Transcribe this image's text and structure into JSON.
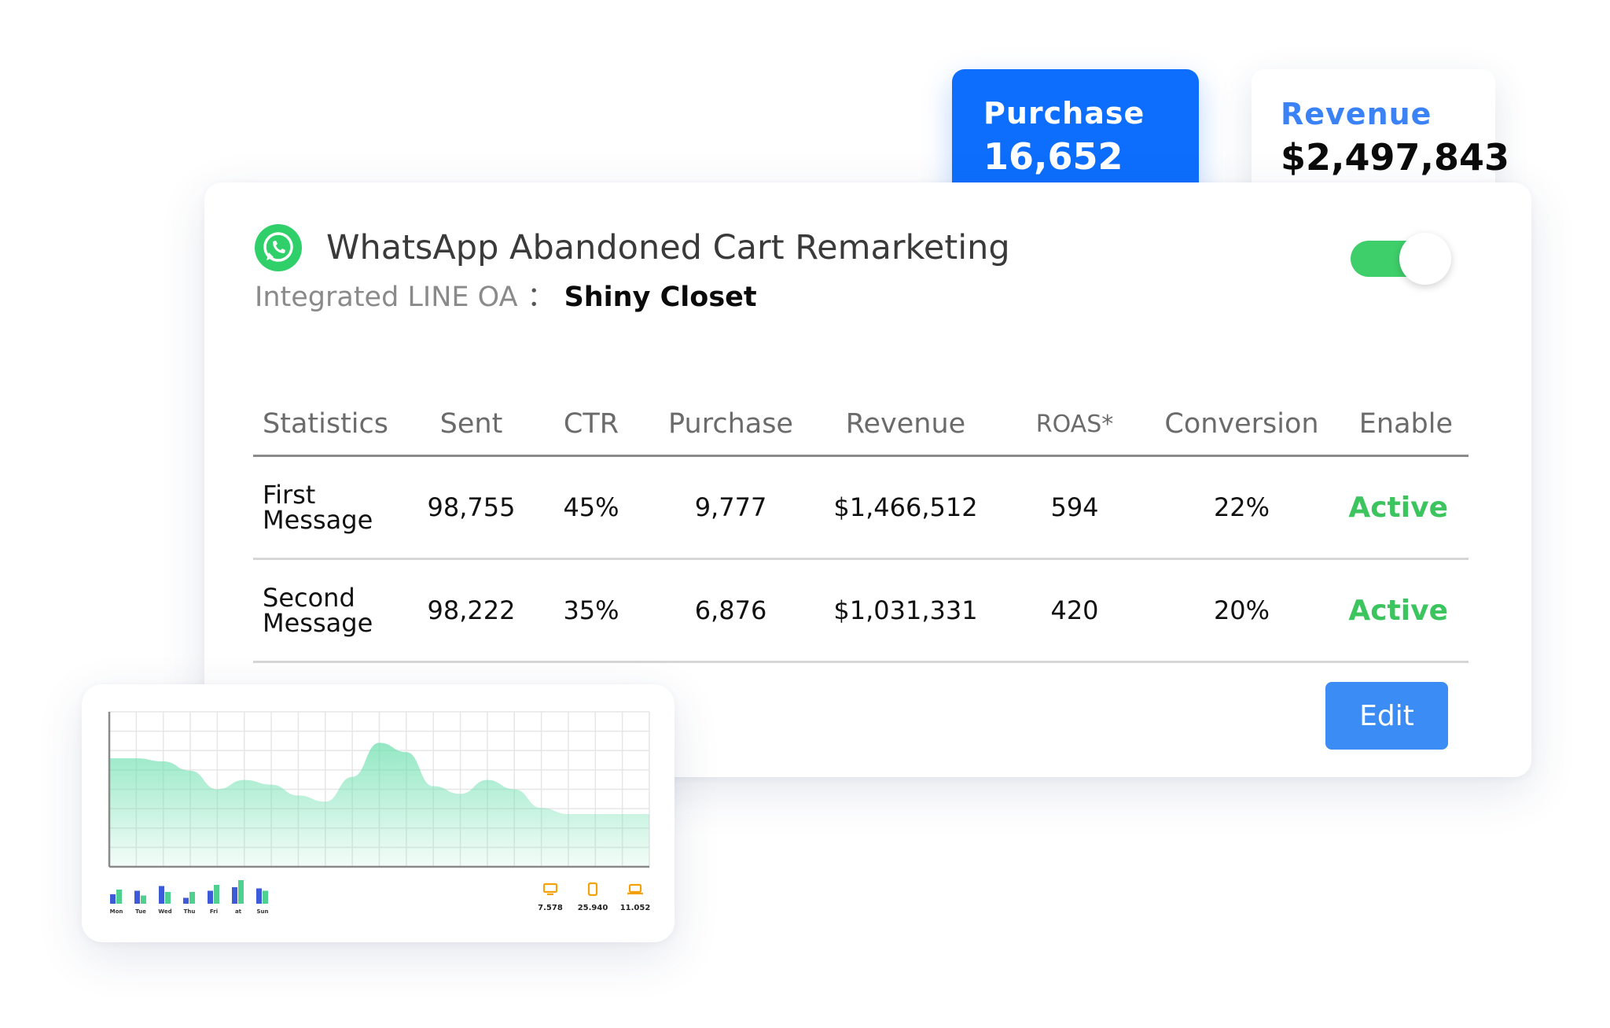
{
  "summary": {
    "purchase": {
      "label": "Purchase",
      "value": "16,652"
    },
    "revenue": {
      "label": "Revenue",
      "value": "$2,497,843"
    }
  },
  "campaign": {
    "title": "WhatsApp Abandoned Cart Remarketing",
    "integration_label": "Integrated LINE OA",
    "integration_separator": "：",
    "integration_value": "Shiny Closet",
    "enabled": true,
    "icon": "whatsapp-icon"
  },
  "table": {
    "headers": [
      "Statistics",
      "Sent",
      "CTR",
      "Purchase",
      "Revenue",
      "ROAS*",
      "Conversion",
      "Enable"
    ],
    "rows": [
      {
        "name_line1": "First",
        "name_line2": "Message",
        "sent": "98,755",
        "ctr": "45%",
        "purchase": "9,777",
        "revenue": "$1,466,512",
        "roas": "594",
        "conversion": "22%",
        "status": "Active"
      },
      {
        "name_line1": "Second",
        "name_line2": "Message",
        "sent": "98,222",
        "ctr": "35%",
        "purchase": "6,876",
        "revenue": "$1,031,331",
        "roas": "420",
        "conversion": "20%",
        "status": "Active"
      }
    ]
  },
  "actions": {
    "edit_label": "Edit"
  },
  "colors": {
    "primary_blue": "#0d6efd",
    "revenue_blue": "#3b82f6",
    "active_green": "#3cc55f",
    "toggle_green": "#3fcf6a",
    "edit_blue": "#3b8cf5",
    "area_green": "#6fe0b0"
  },
  "chart_data": {
    "type": "area",
    "x": [
      0,
      1,
      2,
      3,
      4,
      5,
      6,
      7,
      8,
      9,
      10,
      11,
      12,
      13,
      14,
      15,
      16,
      17,
      18,
      19,
      20
    ],
    "values": [
      70,
      70,
      68,
      62,
      50,
      56,
      53,
      46,
      42,
      58,
      80,
      74,
      52,
      47,
      56,
      50,
      38,
      34,
      34,
      34,
      34
    ],
    "ylim": [
      0,
      100
    ],
    "grid": true,
    "weekday_bars": {
      "categories": [
        "Mon",
        "Tue",
        "Wed",
        "Thu",
        "Fri",
        "at",
        "Sun"
      ],
      "series": [
        {
          "values": [
            40,
            55,
            75,
            25,
            55,
            70,
            65
          ]
        },
        {
          "values": [
            60,
            35,
            50,
            50,
            80,
            100,
            55
          ]
        }
      ]
    },
    "devices": [
      {
        "icon": "desktop-icon",
        "value": "7.578"
      },
      {
        "icon": "mobile-icon",
        "value": "25.940"
      },
      {
        "icon": "laptop-icon",
        "value": "11.052"
      }
    ]
  }
}
